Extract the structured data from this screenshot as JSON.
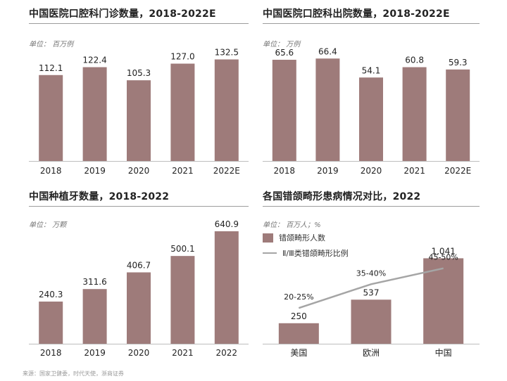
{
  "colors": {
    "bar": "#9e7b7a",
    "line": "#a5a5a5",
    "axis": "#bdbdbd",
    "rule": "#9c9c9c"
  },
  "source": "来源：国家卫健委，时代天使，浙商证券",
  "chart_data": [
    {
      "type": "bar",
      "title": "中国医院口腔科门诊数量，2018-2022E",
      "unit": "单位： 百万例",
      "categories": [
        "2018",
        "2019",
        "2020",
        "2021",
        "2022E"
      ],
      "values": [
        112.1,
        122.4,
        105.3,
        127.0,
        132.5
      ],
      "value_labels": [
        "112.1",
        "122.4",
        "105.3",
        "127.0",
        "132.5"
      ],
      "ylim": [
        0,
        155
      ]
    },
    {
      "type": "bar",
      "title": "中国医院口腔科出院数量，2018-2022E",
      "unit": "单位： 万例",
      "categories": [
        "2018",
        "2019",
        "2020",
        "2021",
        "2022E"
      ],
      "values": [
        65.6,
        66.4,
        54.1,
        60.8,
        59.3
      ],
      "value_labels": [
        "65.6",
        "66.4",
        "54.1",
        "60.8",
        "59.3"
      ],
      "ylim": [
        0,
        77
      ]
    },
    {
      "type": "bar",
      "title": "中国种植牙数量，2018-2022",
      "unit": "单位： 万颗",
      "categories": [
        "2018",
        "2019",
        "2020",
        "2021",
        "2022"
      ],
      "values": [
        240.3,
        311.6,
        406.7,
        500.1,
        640.9
      ],
      "value_labels": [
        "240.3",
        "311.6",
        "406.7",
        "500.1",
        "640.9"
      ],
      "ylim": [
        0,
        640.9
      ]
    },
    {
      "type": "bar",
      "title": "各国错颌畸形患病情况对比，2022",
      "unit": "单位： 百万人；%",
      "categories": [
        "美国",
        "欧洲",
        "中国"
      ],
      "values": [
        250,
        537,
        1041
      ],
      "value_labels": [
        "250",
        "537",
        "1,041"
      ],
      "ylim": [
        0,
        1370
      ],
      "legend": {
        "bar": "错颌畸形人数",
        "line": "Ⅱ/Ⅲ类错颌畸形比例"
      },
      "line_series": {
        "name": "Ⅱ/Ⅲ类错颌畸形比例",
        "labels": [
          "20-25%",
          "35-40%",
          "45-50%"
        ],
        "values": [
          22.5,
          37.5,
          47.5
        ],
        "ylim": [
          0,
          62
        ]
      }
    }
  ]
}
